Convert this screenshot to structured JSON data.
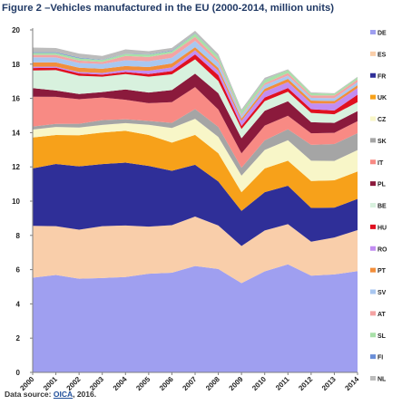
{
  "figure": {
    "title": "Figure 2 –Vehicles manufactured in the EU (2000-2014, million units)",
    "source_prefix": "Data source: ",
    "source_link": "OICA",
    "source_suffix": ", 2016."
  },
  "chart_data": {
    "type": "area",
    "stacked": true,
    "title": "Figure 2 –Vehicles manufactured in the EU (2000-2014, million units)",
    "xlabel": "",
    "ylabel": "",
    "ylim": [
      0,
      20
    ],
    "yticks": [
      0,
      2,
      4,
      6,
      8,
      10,
      12,
      14,
      16,
      18,
      20
    ],
    "grid": false,
    "legend_position": "right",
    "categories": [
      "2000",
      "2001",
      "2002",
      "2003",
      "2004",
      "2005",
      "2006",
      "2007",
      "2008",
      "2009",
      "2010",
      "2011",
      "2012",
      "2013",
      "2014"
    ],
    "series": [
      {
        "name": "DE",
        "color": "#9f9ff0",
        "values": [
          5.53,
          5.69,
          5.47,
          5.51,
          5.57,
          5.76,
          5.82,
          6.21,
          6.04,
          5.21,
          5.9,
          6.31,
          5.65,
          5.72,
          5.91
        ]
      },
      {
        "name": "ES",
        "color": "#f9ceaa",
        "values": [
          3.03,
          2.85,
          2.86,
          3.03,
          3.01,
          2.75,
          2.78,
          2.89,
          2.54,
          2.17,
          2.39,
          2.35,
          1.98,
          2.16,
          2.4
        ]
      },
      {
        "name": "FR",
        "color": "#2f2f98",
        "values": [
          3.35,
          3.63,
          3.7,
          3.62,
          3.67,
          3.55,
          3.17,
          3.02,
          2.57,
          2.05,
          2.23,
          2.24,
          1.97,
          1.74,
          1.82
        ]
      },
      {
        "name": "UK",
        "color": "#f7a11a",
        "values": [
          1.81,
          1.69,
          1.82,
          1.85,
          1.86,
          1.8,
          1.65,
          1.75,
          1.65,
          1.09,
          1.39,
          1.46,
          1.58,
          1.6,
          1.6
        ]
      },
      {
        "name": "CZ",
        "color": "#f8f6c8",
        "values": [
          0.46,
          0.47,
          0.45,
          0.44,
          0.45,
          0.6,
          0.85,
          0.94,
          0.95,
          0.97,
          1.08,
          1.2,
          1.18,
          1.13,
          1.25
        ]
      },
      {
        "name": "SK",
        "color": "#a5a5a5",
        "values": [
          0.18,
          0.18,
          0.22,
          0.28,
          0.22,
          0.22,
          0.3,
          0.57,
          0.58,
          0.46,
          0.56,
          0.64,
          0.93,
          0.98,
          0.99
        ]
      },
      {
        "name": "IT",
        "color": "#f88a84",
        "values": [
          1.74,
          1.58,
          1.43,
          1.32,
          1.14,
          1.04,
          1.21,
          1.28,
          1.02,
          0.84,
          0.86,
          0.79,
          0.67,
          0.66,
          0.7
        ]
      },
      {
        "name": "PL",
        "color": "#8b1a3c",
        "values": [
          0.5,
          0.37,
          0.31,
          0.32,
          0.6,
          0.62,
          0.71,
          0.79,
          0.95,
          0.88,
          0.87,
          0.84,
          0.65,
          0.58,
          0.59
        ]
      },
      {
        "name": "BE",
        "color": "#d8f1de",
        "values": [
          1.03,
          1.19,
          1.06,
          0.9,
          0.9,
          0.93,
          0.92,
          0.83,
          0.72,
          0.54,
          0.56,
          0.56,
          0.54,
          0.5,
          0.52
        ]
      },
      {
        "name": "HU",
        "color": "#e01020",
        "values": [
          0.14,
          0.14,
          0.14,
          0.12,
          0.12,
          0.15,
          0.19,
          0.29,
          0.34,
          0.18,
          0.21,
          0.22,
          0.22,
          0.22,
          0.44
        ]
      },
      {
        "name": "RO",
        "color": "#c28df2",
        "values": [
          0.08,
          0.07,
          0.08,
          0.1,
          0.12,
          0.19,
          0.21,
          0.24,
          0.25,
          0.3,
          0.35,
          0.34,
          0.34,
          0.41,
          0.39
        ]
      },
      {
        "name": "PT",
        "color": "#f28e3a",
        "values": [
          0.25,
          0.24,
          0.25,
          0.24,
          0.23,
          0.22,
          0.23,
          0.18,
          0.17,
          0.13,
          0.16,
          0.19,
          0.16,
          0.15,
          0.16
        ]
      },
      {
        "name": "SV",
        "color": "#a9c7f0",
        "values": [
          0.3,
          0.29,
          0.28,
          0.28,
          0.34,
          0.34,
          0.33,
          0.37,
          0.31,
          0.16,
          0.22,
          0.19,
          0.16,
          0.16,
          0.18
        ]
      },
      {
        "name": "AT",
        "color": "#f4a3a3",
        "values": [
          0.14,
          0.15,
          0.14,
          0.12,
          0.25,
          0.25,
          0.27,
          0.23,
          0.15,
          0.06,
          0.1,
          0.15,
          0.14,
          0.17,
          0.15
        ]
      },
      {
        "name": "SL",
        "color": "#a8e0a8",
        "values": [
          0.12,
          0.12,
          0.13,
          0.11,
          0.12,
          0.14,
          0.12,
          0.2,
          0.2,
          0.21,
          0.21,
          0.17,
          0.13,
          0.09,
          0.12
        ]
      },
      {
        "name": "FI",
        "color": "#6a8ed8",
        "values": [
          0.04,
          0.04,
          0.04,
          0.02,
          0.01,
          0.02,
          0.03,
          0.02,
          0.02,
          0.01,
          0.01,
          0.0,
          0.0,
          0.0,
          0.0
        ]
      },
      {
        "name": "NL",
        "color": "#bcbcbc",
        "values": [
          0.27,
          0.24,
          0.24,
          0.22,
          0.25,
          0.18,
          0.16,
          0.14,
          0.13,
          0.1,
          0.1,
          0.05,
          0.05,
          0.03,
          0.04
        ]
      }
    ]
  }
}
